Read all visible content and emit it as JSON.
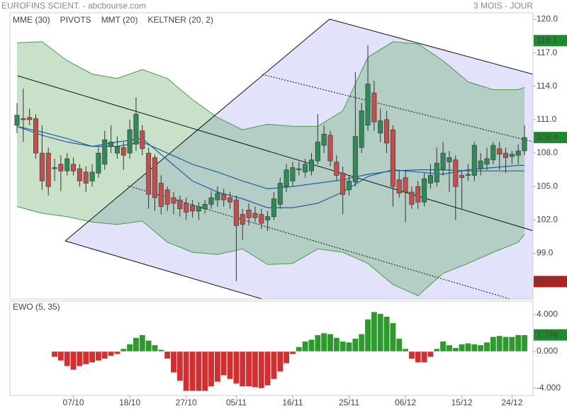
{
  "chart_data": {
    "type": "candlestick",
    "title": "EUROFINS SCIENT. - abcbourse.com",
    "period": "3 MOIS - JOUR",
    "categories": [
      null,
      null,
      null,
      null,
      null,
      null,
      null,
      null,
      null,
      "07/10",
      null,
      null,
      null,
      null,
      null,
      null,
      null,
      null,
      "18/10",
      null,
      null,
      null,
      null,
      null,
      null,
      null,
      null,
      "27/10",
      null,
      null,
      null,
      null,
      null,
      null,
      null,
      "05/11",
      null,
      null,
      null,
      null,
      null,
      null,
      null,
      null,
      "16/11",
      null,
      null,
      null,
      null,
      null,
      null,
      null,
      null,
      "25/11",
      null,
      null,
      null,
      null,
      null,
      null,
      null,
      null,
      "06/12",
      null,
      null,
      null,
      null,
      null,
      null,
      null,
      null,
      "15/12",
      null,
      null,
      null,
      null,
      null,
      null,
      null,
      "24/12",
      null,
      null
    ],
    "ohlc": [
      [
        110.5,
        112.5,
        109.8,
        111.4
      ],
      [
        111.1,
        113.8,
        109.0,
        111.0
      ],
      [
        111.2,
        112.0,
        110.5,
        111.0
      ],
      [
        111.1,
        111.5,
        107.5,
        108.0
      ],
      [
        108.0,
        110.5,
        104.7,
        105.5
      ],
      [
        108.0,
        108.5,
        104.2,
        105.0
      ],
      [
        106.6,
        107.5,
        105.5,
        106.7
      ],
      [
        107.0,
        107.8,
        104.6,
        106.4
      ],
      [
        106.4,
        108.0,
        106.0,
        107.5
      ],
      [
        107.0,
        107.6,
        106.0,
        106.4
      ],
      [
        106.6,
        107.0,
        105.0,
        105.5
      ],
      [
        106.3,
        106.8,
        104.5,
        105.3
      ],
      [
        105.5,
        107.0,
        105.0,
        106.3
      ],
      [
        106.2,
        108.5,
        105.8,
        108.0
      ],
      [
        107.0,
        110.0,
        106.5,
        109.2
      ],
      [
        108.6,
        110.5,
        108.0,
        109.0
      ],
      [
        108.0,
        109.5,
        107.5,
        108.6
      ],
      [
        108.5,
        109.0,
        106.5,
        107.8
      ],
      [
        108.0,
        111.0,
        107.5,
        110.1
      ],
      [
        108.8,
        113.0,
        108.2,
        111.5
      ],
      [
        110.0,
        110.5,
        107.8,
        108.4
      ],
      [
        108.0,
        108.5,
        103.0,
        104.3
      ],
      [
        107.6,
        107.9,
        102.8,
        104.0
      ],
      [
        105.3,
        106.0,
        102.5,
        103.2
      ],
      [
        104.7,
        105.0,
        102.8,
        103.4
      ],
      [
        104.0,
        104.5,
        102.5,
        103.5
      ],
      [
        103.8,
        104.2,
        102.3,
        103.0
      ],
      [
        103.5,
        104.0,
        102.0,
        102.7
      ],
      [
        103.3,
        103.8,
        102.2,
        102.8
      ],
      [
        102.8,
        103.6,
        102.0,
        103.2
      ],
      [
        103.0,
        103.8,
        102.6,
        103.4
      ],
      [
        103.4,
        104.6,
        103.0,
        104.0
      ],
      [
        103.8,
        105.0,
        103.2,
        104.4
      ],
      [
        104.3,
        104.8,
        103.2,
        103.8
      ],
      [
        104.0,
        104.5,
        103.0,
        103.6
      ],
      [
        103.8,
        104.2,
        96.5,
        101.5
      ],
      [
        102.5,
        103.0,
        100.2,
        101.6
      ],
      [
        102.9,
        103.5,
        101.5,
        102.2
      ],
      [
        102.6,
        103.2,
        101.8,
        102.2
      ],
      [
        102.5,
        103.0,
        101.2,
        101.7
      ],
      [
        102.0,
        102.8,
        101.0,
        102.3
      ],
      [
        102.3,
        104.5,
        102.0,
        103.9
      ],
      [
        103.4,
        105.8,
        103.0,
        105.3
      ],
      [
        105.0,
        107.0,
        104.5,
        106.5
      ],
      [
        105.5,
        107.2,
        105.0,
        106.7
      ],
      [
        106.5,
        107.2,
        106.0,
        106.6
      ],
      [
        106.3,
        107.5,
        105.8,
        107.0
      ],
      [
        106.4,
        108.0,
        106.0,
        107.4
      ],
      [
        107.3,
        111.5,
        107.0,
        109.0
      ],
      [
        108.7,
        110.5,
        108.0,
        109.7
      ],
      [
        109.6,
        110.0,
        106.8,
        107.3
      ],
      [
        107.2,
        107.8,
        105.5,
        106.0
      ],
      [
        106.2,
        106.8,
        102.5,
        104.3
      ],
      [
        104.7,
        106.0,
        104.2,
        105.5
      ],
      [
        105.4,
        115.3,
        105.0,
        109.5
      ],
      [
        108.5,
        112.5,
        108.0,
        111.8
      ],
      [
        110.5,
        117.7,
        110.0,
        114.2
      ],
      [
        113.4,
        114.5,
        110.0,
        110.8
      ],
      [
        109.8,
        112.0,
        109.0,
        110.9
      ],
      [
        111.0,
        111.8,
        108.0,
        108.9
      ],
      [
        110.1,
        110.5,
        103.2,
        105.0
      ],
      [
        105.6,
        106.5,
        104.0,
        104.4
      ],
      [
        105.8,
        106.5,
        101.8,
        104.5
      ],
      [
        104.5,
        105.0,
        103.0,
        103.4
      ],
      [
        105.0,
        105.5,
        103.0,
        103.6
      ],
      [
        103.6,
        106.2,
        103.2,
        105.7
      ],
      [
        105.3,
        107.0,
        104.8,
        106.0
      ],
      [
        105.4,
        108.5,
        105.0,
        107.1
      ],
      [
        106.5,
        109.0,
        106.0,
        108.0
      ],
      [
        107.2,
        108.2,
        104.5,
        107.6
      ],
      [
        107.4,
        107.8,
        102.0,
        105.0
      ],
      [
        106.0,
        106.5,
        103.0,
        105.8
      ],
      [
        106.0,
        107.0,
        105.5,
        106.1
      ],
      [
        106.0,
        109.0,
        105.5,
        108.7
      ],
      [
        106.6,
        108.0,
        106.0,
        107.3
      ],
      [
        107.0,
        108.5,
        106.5,
        107.5
      ],
      [
        107.4,
        109.0,
        107.0,
        108.7
      ],
      [
        108.4,
        109.0,
        106.5,
        107.9
      ],
      [
        108.0,
        108.5,
        106.2,
        107.6
      ],
      [
        107.7,
        108.2,
        107.0,
        107.9
      ],
      [
        107.8,
        108.8,
        107.0,
        108.2
      ],
      [
        108.2,
        110.5,
        107.8,
        109.4
      ]
    ],
    "up_color": "#2f8a57",
    "down_color": "#c0504d",
    "series": [
      {
        "name": "MME (30)",
        "color": "#1f5fa8",
        "x": [
          0,
          4,
          8,
          12,
          16,
          20,
          24,
          28,
          32,
          36,
          40,
          44,
          48,
          52,
          56,
          60,
          64,
          68,
          72,
          76,
          80,
          81
        ],
        "values": [
          110.4,
          109.9,
          109.3,
          108.6,
          108.6,
          109.0,
          108.0,
          107.0,
          106.3,
          105.5,
          104.8,
          105.0,
          105.3,
          105.6,
          106.1,
          106.4,
          106.5,
          106.5,
          106.4,
          106.4,
          106.4,
          106.4
        ]
      },
      {
        "name": "PIVOTS",
        "color": "#555555"
      },
      {
        "name": "MMT (20)",
        "color": "#1f5fa8",
        "x": [
          0,
          4,
          8,
          12,
          16,
          20,
          24,
          28,
          32,
          36,
          40,
          44,
          48,
          52,
          56,
          60,
          64,
          68,
          72,
          76,
          80,
          81
        ],
        "values": [
          110.4,
          109.6,
          109.0,
          108.6,
          109.0,
          109.3,
          107.4,
          105.5,
          104.5,
          103.9,
          103.1,
          103.1,
          103.5,
          104.5,
          105.9,
          106.5,
          106.3,
          106.1,
          106.5,
          106.7,
          106.9,
          106.9
        ]
      },
      {
        "name": "KELTNER (20, 2)",
        "color": "#4a9a4a",
        "x": [
          0,
          4,
          8,
          12,
          16,
          20,
          24,
          28,
          32,
          36,
          40,
          44,
          48,
          52,
          56,
          60,
          64,
          68,
          72,
          76,
          80,
          81
        ],
        "upper": [
          117.9,
          118.0,
          116.3,
          115.1,
          114.7,
          115.5,
          114.7,
          112.8,
          111.2,
          110.1,
          110.6,
          110.4,
          110.4,
          111.8,
          116.6,
          118.0,
          117.8,
          116.3,
          114.4,
          113.7,
          113.7,
          113.9
        ],
        "lower": [
          103.2,
          102.6,
          102.3,
          101.8,
          101.6,
          101.9,
          100.0,
          99.1,
          98.9,
          99.4,
          98.0,
          98.1,
          99.4,
          99.1,
          98.1,
          96.2,
          95.2,
          97.2,
          98.1,
          99.1,
          100.0,
          100.7
        ]
      }
    ],
    "ylim": [
      94.9,
      120.6
    ],
    "yticks": [
      {
        "value": 120,
        "label": "120.0"
      },
      {
        "value": 117,
        "label": "117.0"
      },
      {
        "value": 114,
        "label": "114.0"
      },
      {
        "value": 111,
        "label": "111.0"
      },
      {
        "value": 108,
        "label": "108.0"
      },
      {
        "value": 105,
        "label": "105.0"
      },
      {
        "value": 102,
        "label": "102.0"
      },
      {
        "value": 99,
        "label": "99.0"
      }
    ],
    "tags": [
      {
        "value": 118.1,
        "color": "#1e8a2e"
      },
      {
        "value": 109.4,
        "color": "#1e8a2e"
      },
      {
        "value": 96.47,
        "color": "#b22222"
      }
    ],
    "ewo": {
      "name": "EWO (5, 35)",
      "values": [
        null,
        null,
        null,
        null,
        null,
        null,
        -0.6,
        -1.0,
        -1.6,
        -2.0,
        -1.6,
        -1.4,
        -1.2,
        -1.0,
        -0.8,
        -0.5,
        -0.3,
        0.3,
        0.8,
        1.5,
        1.8,
        1.2,
        0.7,
        0.2,
        -0.8,
        -2.3,
        -3.2,
        -4.3,
        -4.3,
        -4.3,
        -4.3,
        -3.8,
        -3.3,
        -2.6,
        -3.0,
        -3.5,
        -3.8,
        -3.8,
        -3.9,
        -4.0,
        -3.7,
        -3.0,
        -2.2,
        -1.3,
        -0.3,
        0.5,
        1.1,
        1.3,
        1.8,
        2.0,
        1.9,
        1.5,
        1.1,
        1.0,
        1.4,
        1.9,
        3.5,
        4.3,
        4.1,
        3.8,
        3.1,
        1.4,
        0.3,
        -0.8,
        -1.2,
        -1.2,
        -0.6,
        0.3,
        1.1,
        0.7,
        0.4,
        0.8,
        0.9,
        0.8,
        0.7,
        1.0,
        1.6,
        1.7,
        1.6,
        1.6,
        1.8,
        1.799
      ],
      "pos_color": "#2e9a2e",
      "neg_color": "#d03030",
      "ylim": [
        -4.77,
        5.46
      ],
      "yticks": [
        {
          "value": 4,
          "label": "4.000"
        },
        {
          "value": 0,
          "label": "0.000"
        },
        {
          "value": -4,
          "label": "-4.000"
        }
      ],
      "tag": {
        "value": 1.799,
        "color": "#1e8a2e"
      }
    }
  }
}
